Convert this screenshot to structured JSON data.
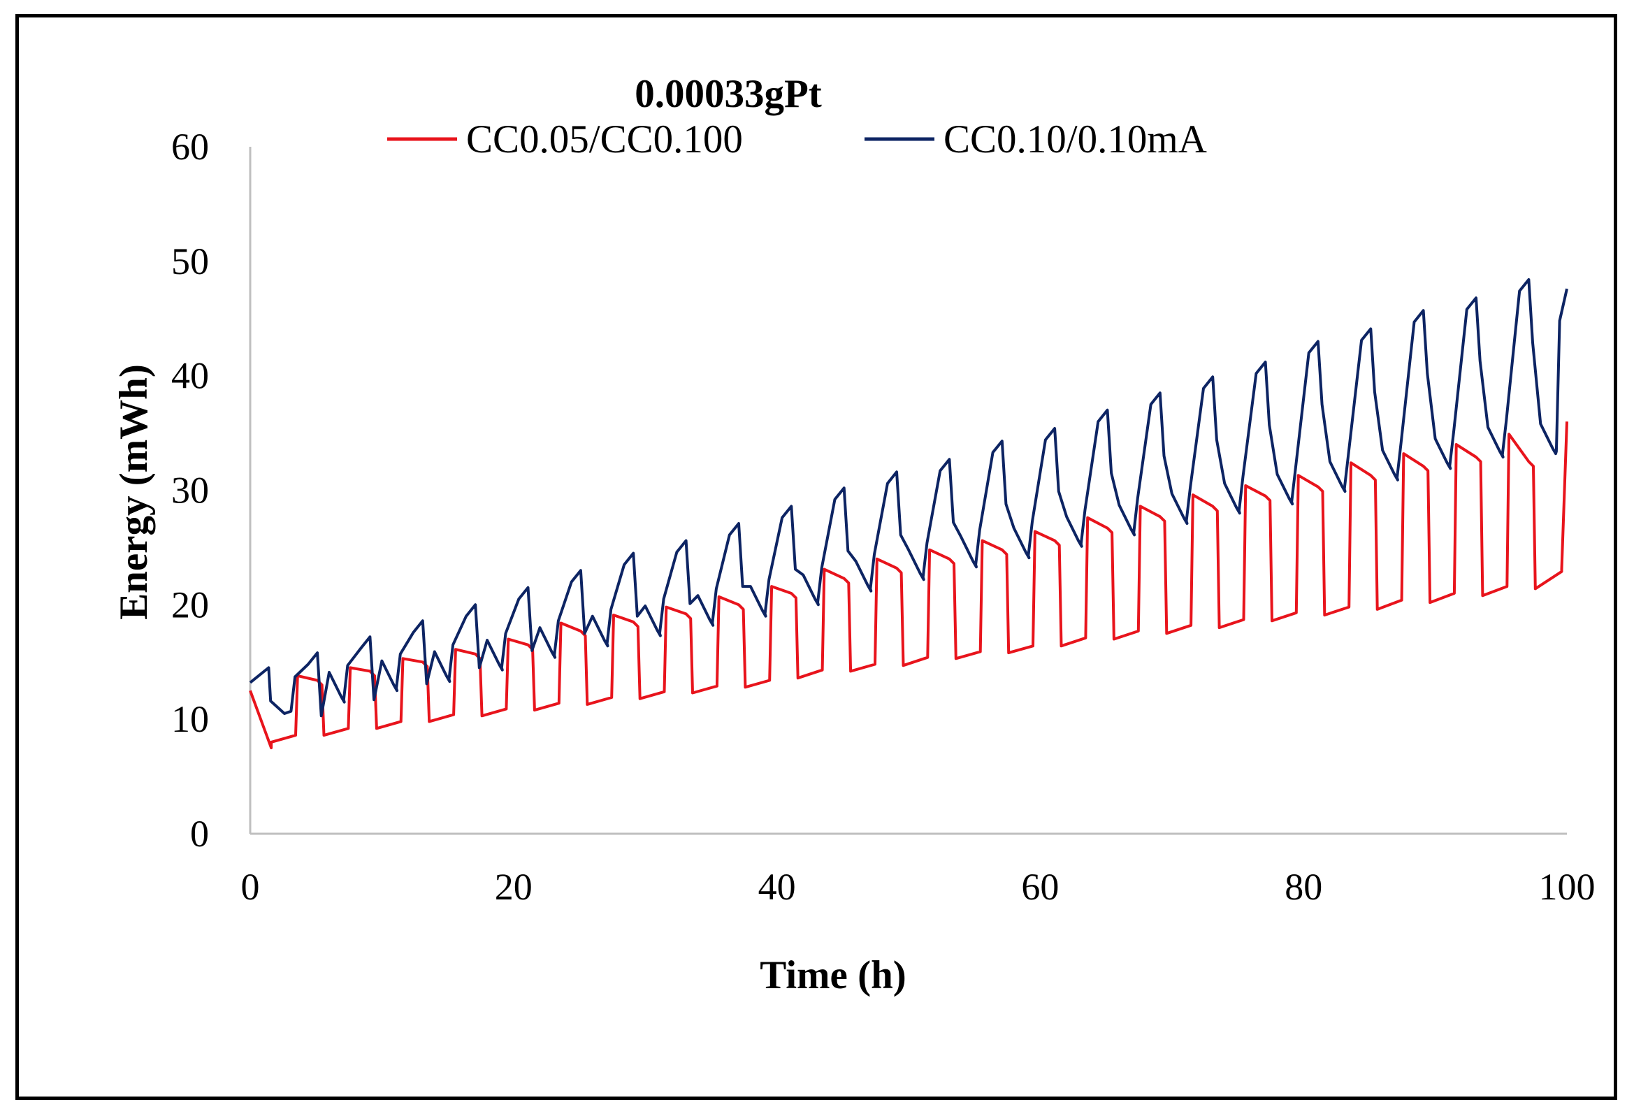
{
  "chart_data": {
    "type": "line",
    "title": "0.00033gPt",
    "xlabel": "Time (h)",
    "ylabel": "Energy (mWh)",
    "xlim": [
      0,
      100
    ],
    "ylim": [
      0,
      60
    ],
    "x_ticks": [
      "0",
      "20",
      "40",
      "60",
      "80",
      "100"
    ],
    "y_ticks": [
      "0",
      "10",
      "20",
      "30",
      "40",
      "50",
      "60"
    ],
    "grid": false,
    "legend_position": "top",
    "series": [
      {
        "name": "CC0.05/CC0.100",
        "color": "#e8141c",
        "cycle_period_h": 4.0,
        "first_high_at_h": 3.6,
        "start": [
          0,
          12.5
        ],
        "first_low": [
          1.6,
          7.5
        ],
        "high_start": [
          13.8,
          14.5,
          15.3,
          16.1,
          17.0,
          18.4,
          19.1,
          19.8,
          20.7,
          21.6,
          23.1,
          24.0,
          24.8,
          25.6,
          26.4,
          27.6,
          28.6,
          29.6,
          30.4,
          31.3,
          32.4,
          33.2,
          34.0,
          34.9
        ],
        "high_end": [
          13.0,
          13.8,
          14.6,
          15.3,
          16.1,
          17.3,
          18.1,
          18.8,
          19.6,
          20.6,
          21.9,
          22.8,
          23.6,
          24.4,
          25.2,
          26.3,
          27.3,
          28.2,
          29.1,
          29.9,
          30.9,
          31.7,
          32.5,
          32.1
        ],
        "low_start": [
          8.0,
          8.6,
          9.2,
          9.8,
          10.3,
          10.8,
          11.3,
          11.8,
          12.3,
          12.8,
          13.6,
          14.2,
          14.7,
          15.3,
          15.8,
          16.4,
          17.0,
          17.5,
          18.0,
          18.6,
          19.1,
          19.6,
          20.2,
          20.8
        ],
        "low_end": [
          8.6,
          9.2,
          9.8,
          10.4,
          10.9,
          11.4,
          11.9,
          12.4,
          12.9,
          13.4,
          14.3,
          14.8,
          15.4,
          15.9,
          16.4,
          17.1,
          17.7,
          18.2,
          18.7,
          19.3,
          19.8,
          20.4,
          21.0,
          21.6
        ],
        "end": [
          100,
          36.0
        ]
      },
      {
        "name": "CC0.10/0.10mA",
        "color": "#0d2463",
        "cycle_period_h": 4.0,
        "first_high_at_h": 1.4,
        "start": [
          0,
          13.2
        ],
        "first_high": [
          1.4,
          14.5
        ],
        "peaks": [
          15.8,
          17.2,
          18.6,
          20.0,
          21.5,
          23.0,
          24.5,
          25.6,
          27.1,
          28.6,
          30.2,
          31.6,
          32.7,
          34.3,
          35.4,
          37.0,
          38.5,
          39.9,
          41.2,
          43.0,
          44.1,
          45.7,
          46.8,
          48.4
        ],
        "troughs": [
          10.5,
          11.5,
          12.5,
          13.3,
          14.3,
          15.4,
          16.4,
          17.3,
          18.2,
          19.0,
          20.0,
          21.2,
          22.2,
          23.3,
          24.1,
          25.1,
          26.1,
          27.1,
          28.0,
          28.8,
          29.9,
          30.9,
          31.9,
          32.9,
          33.2
        ],
        "end": [
          100,
          47.6
        ]
      }
    ]
  }
}
